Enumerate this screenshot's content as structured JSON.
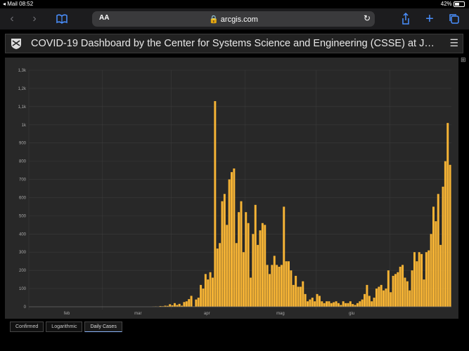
{
  "status": {
    "left": "◂ Mail  08:52",
    "right": "42%"
  },
  "browser": {
    "text_size_label": "AA",
    "url": "🔒 arcgis.com"
  },
  "dashboard": {
    "title": "COVID-19 Dashboard by the Center for Systems Science and Engineering (CSSE) at J…"
  },
  "tabs": [
    {
      "label": "Confirmed"
    },
    {
      "label": "Logarithmic"
    },
    {
      "label": "Daily Cases"
    }
  ],
  "colors": {
    "bar": "#f5b335",
    "panel": "#282828",
    "grid": "#3a3a3a"
  },
  "chart_data": {
    "type": "bar",
    "series": [
      {
        "name": "",
        "values": [
          0,
          0,
          0,
          0,
          0,
          0,
          0,
          0,
          0,
          0,
          0,
          0,
          0,
          0,
          0,
          0,
          0,
          0,
          0,
          0,
          0,
          0,
          0,
          0,
          0,
          0,
          0,
          0,
          0,
          0,
          0,
          0,
          0,
          0,
          0,
          0,
          0,
          0,
          0,
          0,
          0,
          0,
          0,
          0,
          0,
          0,
          0,
          0,
          0,
          0,
          0,
          0,
          1,
          2,
          1,
          4,
          3,
          6,
          5,
          14,
          8,
          20,
          10,
          16,
          6,
          26,
          30,
          42,
          60,
          2,
          40,
          50,
          120,
          100,
          180,
          150,
          190,
          160,
          1130,
          320,
          350,
          580,
          620,
          450,
          700,
          740,
          760,
          350,
          520,
          580,
          300,
          520,
          460,
          160,
          400,
          560,
          340,
          420,
          460,
          450,
          230,
          180,
          230,
          280,
          230,
          220,
          230,
          550,
          250,
          250,
          200,
          120,
          170,
          110,
          110,
          140,
          70,
          30,
          40,
          50,
          30,
          70,
          60,
          30,
          20,
          30,
          30,
          20,
          25,
          30,
          20,
          10,
          30,
          20,
          20,
          30,
          15,
          10,
          20,
          30,
          40,
          70,
          120,
          60,
          30,
          50,
          100,
          110,
          120,
          90,
          100,
          200,
          80,
          170,
          180,
          190,
          220,
          230,
          160,
          140,
          90,
          200,
          300,
          250,
          300,
          290,
          150,
          300,
          310,
          400,
          550,
          470,
          620,
          340,
          660,
          800,
          1010,
          780
        ]
      }
    ],
    "x_tick_labels": [
      "feb",
      "mar",
      "apr",
      "mag",
      "giu"
    ],
    "y_tick_labels": [
      "0",
      "100",
      "200",
      "300",
      "400",
      "500",
      "600",
      "700",
      "800",
      "900",
      "1k",
      "1,1k",
      "1,2k",
      "1,3k"
    ],
    "ylim": [
      0,
      1300
    ],
    "grid": true
  }
}
